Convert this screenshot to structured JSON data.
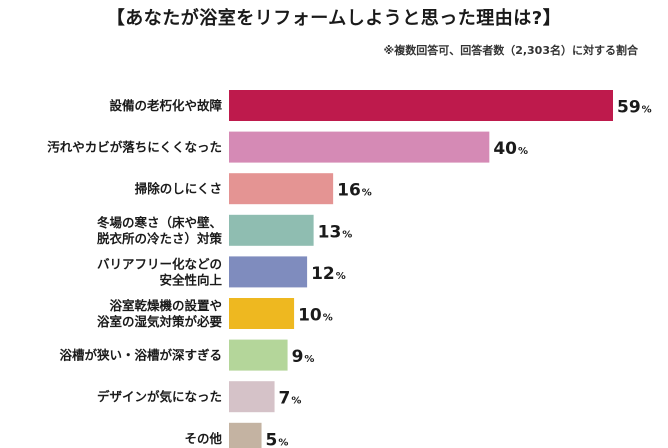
{
  "chart_data": {
    "type": "bar",
    "orientation": "horizontal",
    "title": "【あなたが浴室をリフォームしようと思った理由は?】",
    "note": "※複数回答可、回答者数（2,303名）に対する割合",
    "unit": "%",
    "categories": [
      [
        "設備の老朽化や故障"
      ],
      [
        "汚れやカビが落ちにくくなった"
      ],
      [
        "掃除のしにくさ"
      ],
      [
        "冬場の寒さ（床や壁、",
        "脱衣所の冷たさ）対策"
      ],
      [
        "バリアフリー化などの",
        "安全性向上"
      ],
      [
        "浴室乾燥機の設置や",
        "浴室の湿気対策が必要"
      ],
      [
        "浴槽が狭い・浴槽が深すぎる"
      ],
      [
        "デザインが気になった"
      ],
      [
        "その他"
      ]
    ],
    "values": [
      59,
      40,
      16,
      13,
      12,
      10,
      9,
      7,
      5
    ],
    "colors": [
      "#be1a4c",
      "#d58ab5",
      "#e49493",
      "#8fbdb1",
      "#7f8cbe",
      "#eeb820",
      "#b4d69a",
      "#d5c2c8",
      "#c4b3a2"
    ],
    "xlim": [
      0,
      59
    ]
  }
}
